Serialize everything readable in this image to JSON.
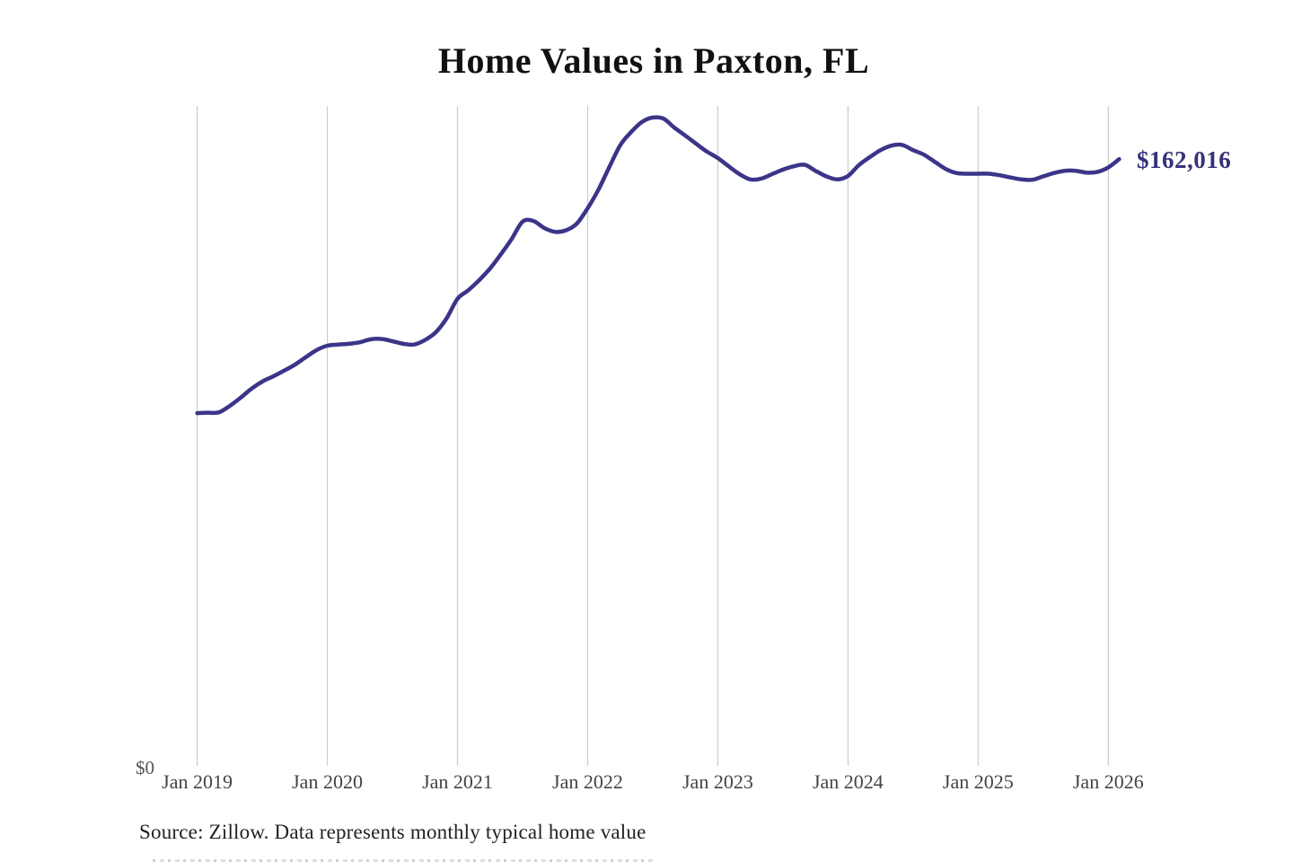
{
  "title": "Home Values in Paxton, FL",
  "source_note": "Source: Zillow. Data represents monthly typical home value",
  "end_label": "$162,016",
  "y_axis": {
    "zero_label": "$0"
  },
  "colors": {
    "line": "#3b3589",
    "end_label": "#363178",
    "gridline": "#cccccc",
    "title_text": "#111111",
    "tick_text": "#444444",
    "source_text": "#222222",
    "background": "#ffffff"
  },
  "chart_data": {
    "type": "line",
    "title": "Home Values in Paxton, FL",
    "series_name": "Monthly typical home value",
    "xlabel": "",
    "ylabel": "",
    "ylim": [
      0,
      176200
    ],
    "grid": "vertical-only",
    "legend": "none",
    "x_tick_labels": [
      "Jan 2019",
      "Jan 2020",
      "Jan 2021",
      "Jan 2022",
      "Jan 2023",
      "Jan 2024",
      "Jan 2025",
      "Jan 2026"
    ],
    "y_tick_labels": [
      "$0"
    ],
    "final_value_label": "$162,016",
    "months": [
      "Jan 2019",
      "Feb 2019",
      "Mar 2019",
      "Apr 2019",
      "May 2019",
      "Jun 2019",
      "Jul 2019",
      "Aug 2019",
      "Sep 2019",
      "Oct 2019",
      "Nov 2019",
      "Dec 2019",
      "Jan 2020",
      "Feb 2020",
      "Mar 2020",
      "Apr 2020",
      "May 2020",
      "Jun 2020",
      "Jul 2020",
      "Aug 2020",
      "Sep 2020",
      "Oct 2020",
      "Nov 2020",
      "Dec 2020",
      "Jan 2021",
      "Feb 2021",
      "Mar 2021",
      "Apr 2021",
      "May 2021",
      "Jun 2021",
      "Jul 2021",
      "Aug 2021",
      "Sep 2021",
      "Oct 2021",
      "Nov 2021",
      "Dec 2021",
      "Jan 2022",
      "Feb 2022",
      "Mar 2022",
      "Apr 2022",
      "May 2022",
      "Jun 2022",
      "Jul 2022",
      "Aug 2022",
      "Sep 2022",
      "Oct 2022",
      "Nov 2022",
      "Dec 2022",
      "Jan 2023",
      "Feb 2023",
      "Mar 2023",
      "Apr 2023",
      "May 2023",
      "Jun 2023",
      "Jul 2023",
      "Aug 2023",
      "Sep 2023",
      "Oct 2023",
      "Nov 2023",
      "Dec 2023",
      "Jan 2024",
      "Feb 2024",
      "Mar 2024",
      "Apr 2024",
      "May 2024",
      "Jun 2024",
      "Jul 2024",
      "Aug 2024",
      "Sep 2024",
      "Oct 2024",
      "Nov 2024",
      "Dec 2024",
      "Jan 2025",
      "Feb 2025",
      "Mar 2025",
      "Apr 2025",
      "May 2025",
      "Jun 2025",
      "Jul 2025",
      "Aug 2025",
      "Sep 2025",
      "Oct 2025",
      "Nov 2025",
      "Dec 2025",
      "Jan 2026",
      "Feb 2026"
    ],
    "values": [
      94200,
      94300,
      94400,
      96100,
      98300,
      100700,
      102600,
      104000,
      105500,
      107100,
      109100,
      111000,
      112200,
      112500,
      112700,
      113100,
      113900,
      114000,
      113400,
      112700,
      112500,
      113700,
      115800,
      119500,
      124700,
      127000,
      129700,
      132800,
      136600,
      140700,
      145300,
      145500,
      143600,
      142600,
      143000,
      144800,
      148900,
      153900,
      159900,
      165700,
      169200,
      171900,
      173100,
      172800,
      170400,
      168300,
      166100,
      164000,
      162300,
      160100,
      158000,
      156600,
      156800,
      158000,
      159200,
      160100,
      160500,
      158900,
      157400,
      156600,
      157500,
      160400,
      162500,
      164400,
      165600,
      165800,
      164400,
      163200,
      161300,
      159400,
      158300,
      158100,
      158100,
      158100,
      157700,
      157100,
      156600,
      156500,
      157400,
      158300,
      158900,
      158900,
      158400,
      158600,
      159800,
      162016
    ]
  }
}
